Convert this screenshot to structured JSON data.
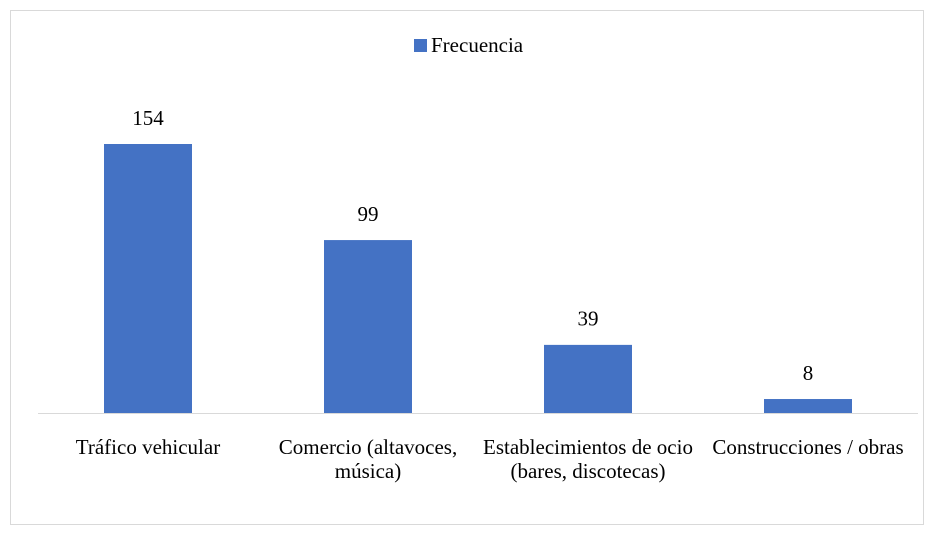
{
  "chart_data": {
    "type": "bar",
    "categories": [
      "Tráfico vehicular",
      "Comercio (altavoces, música)",
      "Establecimientos de ocio (bares, discotecas)",
      "Construcciones / obras"
    ],
    "series": [
      {
        "name": "Frecuencia",
        "color": "#4472c4",
        "values": [
          154,
          99,
          39,
          8
        ]
      }
    ],
    "legend": "top"
  }
}
